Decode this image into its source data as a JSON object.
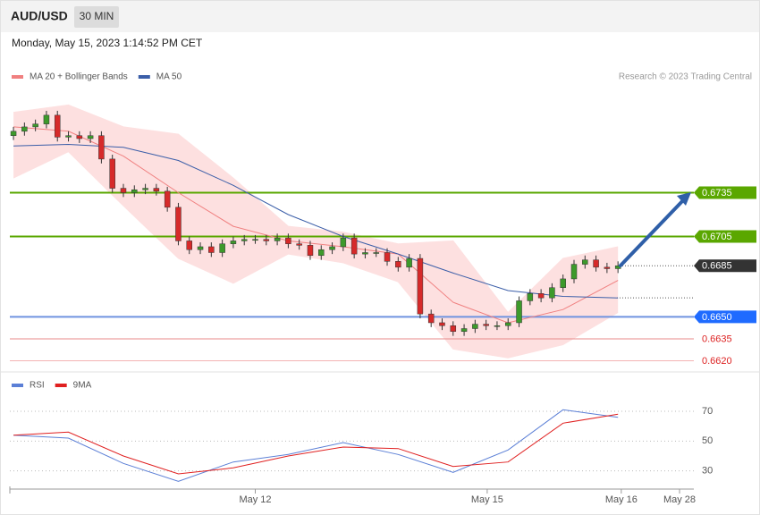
{
  "header": {
    "symbol": "AUD/USD",
    "interval": "30 MIN"
  },
  "timestamp": "Monday, May 15, 2023 1:14:52 PM CET",
  "chart_data": [
    {
      "type": "candlestick",
      "source": "Research © 2023 Trading Central",
      "up_color": "#3d9a2b",
      "down_color": "#d62a2a",
      "open": [
        0.6774,
        0.6777,
        0.678,
        0.6782,
        0.6788,
        0.6773,
        0.6774,
        0.6772,
        0.6774,
        0.6758,
        0.6738,
        0.6735,
        0.6737,
        0.6738,
        0.6736,
        0.6725,
        0.6702,
        0.6696,
        0.6698,
        0.6694,
        0.67,
        0.6702,
        0.6703,
        0.6703,
        0.6702,
        0.6704,
        0.67,
        0.6699,
        0.6692,
        0.6696,
        0.6698,
        0.6704,
        0.6693,
        0.6694,
        0.6694,
        0.6688,
        0.6684,
        0.669,
        0.6652,
        0.6646,
        0.6644,
        0.664,
        0.6642,
        0.6645,
        0.6644,
        0.6644,
        0.6646,
        0.6661,
        0.6666,
        0.6663,
        0.667,
        0.6676,
        0.6686,
        0.6689,
        0.6684,
        0.6683
      ],
      "high": [
        0.678,
        0.6783,
        0.6785,
        0.6791,
        0.6791,
        0.6777,
        0.6777,
        0.6777,
        0.6777,
        0.6761,
        0.6741,
        0.674,
        0.6741,
        0.6741,
        0.6739,
        0.6728,
        0.6705,
        0.6701,
        0.6701,
        0.6703,
        0.6705,
        0.6706,
        0.6706,
        0.6706,
        0.6707,
        0.6707,
        0.6703,
        0.6702,
        0.6699,
        0.6701,
        0.6707,
        0.6707,
        0.6697,
        0.6697,
        0.6697,
        0.6691,
        0.6693,
        0.6693,
        0.6655,
        0.6649,
        0.6647,
        0.6645,
        0.6648,
        0.6648,
        0.6647,
        0.6649,
        0.6664,
        0.6669,
        0.6669,
        0.6673,
        0.6679,
        0.6689,
        0.6692,
        0.6692,
        0.6687,
        0.6688
      ],
      "low": [
        0.6771,
        0.6774,
        0.6777,
        0.6779,
        0.677,
        0.677,
        0.6769,
        0.6769,
        0.6755,
        0.6735,
        0.6732,
        0.6732,
        0.6734,
        0.6733,
        0.6722,
        0.6699,
        0.6693,
        0.6693,
        0.6691,
        0.6691,
        0.6697,
        0.6699,
        0.67,
        0.6699,
        0.6699,
        0.6697,
        0.6696,
        0.6689,
        0.6689,
        0.6693,
        0.6695,
        0.669,
        0.669,
        0.6691,
        0.6685,
        0.6681,
        0.6681,
        0.6649,
        0.6643,
        0.6641,
        0.6637,
        0.6637,
        0.6639,
        0.6641,
        0.6641,
        0.6641,
        0.6643,
        0.6658,
        0.666,
        0.666,
        0.6667,
        0.6673,
        0.6683,
        0.6681,
        0.668,
        0.668
      ],
      "close": [
        0.6777,
        0.678,
        0.6782,
        0.6788,
        0.6773,
        0.6774,
        0.6772,
        0.6774,
        0.6758,
        0.6738,
        0.6735,
        0.6737,
        0.6738,
        0.6736,
        0.6725,
        0.6702,
        0.6696,
        0.6698,
        0.6694,
        0.67,
        0.6702,
        0.6703,
        0.6703,
        0.6702,
        0.6704,
        0.67,
        0.6699,
        0.6692,
        0.6696,
        0.6698,
        0.6704,
        0.6693,
        0.6694,
        0.6694,
        0.6688,
        0.6684,
        0.669,
        0.6652,
        0.6646,
        0.6644,
        0.664,
        0.6642,
        0.6645,
        0.6644,
        0.6644,
        0.6646,
        0.6661,
        0.6666,
        0.6663,
        0.667,
        0.6676,
        0.6686,
        0.6689,
        0.6684,
        0.6683,
        0.6685
      ],
      "series_x": [
        0,
        5,
        10,
        15,
        20,
        25,
        30,
        35,
        40,
        45,
        50,
        55
      ],
      "series": [
        {
          "name": "MA 20 + Bollinger Bands",
          "color": "#f08080",
          "band_color": "#fde0e0",
          "values": [
            0.678,
            0.6777,
            0.676,
            0.6735,
            0.6712,
            0.6702,
            0.6698,
            0.6693,
            0.666,
            0.6646,
            0.6655,
            0.6675
          ],
          "upper": [
            0.679,
            0.6795,
            0.678,
            0.6775,
            0.6745,
            0.6712,
            0.6708,
            0.67,
            0.6702,
            0.6653,
            0.669,
            0.6698
          ],
          "lower": [
            0.6745,
            0.6763,
            0.6726,
            0.669,
            0.6673,
            0.6693,
            0.6687,
            0.6674,
            0.6628,
            0.6622,
            0.6631,
            0.6653
          ]
        },
        {
          "name": "MA 50",
          "color": "#3b5ea8",
          "values": [
            0.6767,
            0.6768,
            0.6766,
            0.6757,
            0.674,
            0.672,
            0.6705,
            0.6693,
            0.668,
            0.6668,
            0.6664,
            0.6663
          ]
        }
      ],
      "levels": [
        {
          "value": 0.6735,
          "label": "0.6735",
          "color": "#5aa700",
          "badge": true
        },
        {
          "value": 0.6705,
          "label": "0.6705",
          "color": "#5aa700",
          "badge": true
        },
        {
          "value": 0.6685,
          "label": "0.6685",
          "color": "#333333",
          "badge": true,
          "dotted": true
        },
        {
          "value": 0.665,
          "label": "0.6650",
          "color": "#1f6bff",
          "line_color": "#6f93e0",
          "badge": true
        },
        {
          "value": 0.6635,
          "label": "0.6635",
          "color": "#dd2222",
          "line_color": "#e88a8a",
          "badge": false
        },
        {
          "value": 0.662,
          "label": "0.6620",
          "color": "#dd2222",
          "line_color": "#f4b4b4",
          "badge": false
        }
      ],
      "xlim": [
        -0.33,
        61.9
      ],
      "ylim": [
        0.6616,
        0.6824
      ]
    },
    {
      "type": "line",
      "x": [
        0,
        5,
        10,
        15,
        20,
        25,
        30,
        35,
        40,
        45,
        50,
        55
      ],
      "series": [
        {
          "name": "RSI",
          "color": "#5b7fd6",
          "values": [
            54,
            52,
            35,
            23,
            36,
            41,
            49,
            41,
            29,
            44,
            71,
            66
          ]
        },
        {
          "name": "9MA",
          "color": "#e02020",
          "values": [
            54,
            56,
            40,
            28,
            32,
            40,
            46,
            45,
            33,
            36,
            62,
            68
          ]
        }
      ],
      "xlim": [
        -0.33,
        61.9
      ],
      "ylim": [
        19,
        82
      ],
      "yticks": [
        30,
        50,
        70
      ],
      "xticks": [
        {
          "value": 22,
          "label": "May 12"
        },
        {
          "value": 43.1,
          "label": "May 15"
        },
        {
          "value": 55.3,
          "label": "May 16"
        },
        {
          "value": 60.6,
          "label": "May 28"
        }
      ],
      "grid": true
    }
  ]
}
